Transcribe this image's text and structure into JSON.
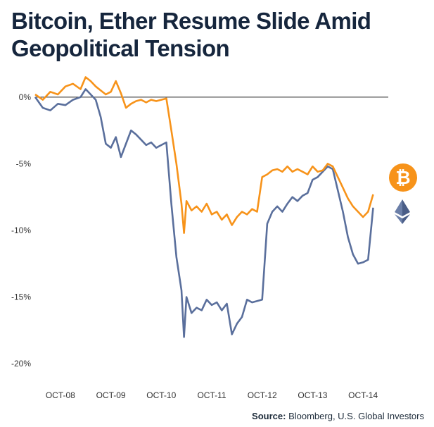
{
  "title": "Bitcoin, Ether Resume Slide Amid Geopolitical Tension",
  "source": {
    "label": "Source:",
    "text": "Bloomberg, U.S. Global Investors"
  },
  "colors": {
    "bitcoin": "#f7931a",
    "ether": "#5a6f9c",
    "axis": "#222222"
  },
  "icons": [
    "bitcoin-logo-icon",
    "ethereum-logo-icon"
  ],
  "chart_data": {
    "type": "line",
    "title": "Bitcoin, Ether Resume Slide Amid Geopolitical Tension",
    "xlabel": "",
    "ylabel": "",
    "x_ticks": [
      "OCT-08",
      "OCT-09",
      "OCT-10",
      "OCT-11",
      "OCT-12",
      "OCT-13",
      "OCT-14"
    ],
    "y_ticks": [
      0,
      -5,
      -10,
      -15,
      -20
    ],
    "y_tick_labels": [
      "0%",
      "-5%",
      "-10%",
      "-15%",
      "-20%"
    ],
    "xlim": [
      0,
      7
    ],
    "ylim": [
      -21,
      2
    ],
    "grid": false,
    "legend": "icons-right",
    "series": [
      {
        "key": "bitcoin",
        "x": [
          0,
          0.15,
          0.3,
          0.45,
          0.6,
          0.75,
          0.9,
          1.0,
          1.1,
          1.2,
          1.3,
          1.4,
          1.5,
          1.6,
          1.7,
          1.8,
          1.9,
          2.0,
          2.1,
          2.2,
          2.3,
          2.4,
          2.5,
          2.6,
          2.7,
          2.8,
          2.9,
          2.95,
          3.0,
          3.1,
          3.2,
          3.3,
          3.4,
          3.5,
          3.6,
          3.7,
          3.8,
          3.9,
          4.0,
          4.1,
          4.2,
          4.3,
          4.4,
          4.5,
          4.6,
          4.7,
          4.8,
          4.9,
          5.0,
          5.1,
          5.2,
          5.3,
          5.4,
          5.5,
          5.6,
          5.7,
          5.8,
          5.9,
          6.0,
          6.1,
          6.2,
          6.3,
          6.4,
          6.5,
          6.6,
          6.7
        ],
        "y": [
          0.2,
          -0.2,
          0.4,
          0.2,
          0.8,
          1.0,
          0.6,
          1.5,
          1.2,
          0.8,
          0.5,
          0.2,
          0.4,
          1.2,
          0.3,
          -0.8,
          -0.5,
          -0.3,
          -0.2,
          -0.4,
          -0.2,
          -0.3,
          -0.2,
          -0.1,
          -2.5,
          -5.0,
          -8.0,
          -10.2,
          -7.8,
          -8.5,
          -8.2,
          -8.6,
          -8.0,
          -8.8,
          -8.6,
          -9.2,
          -8.8,
          -9.6,
          -9.0,
          -8.6,
          -8.8,
          -8.4,
          -8.6,
          -6.0,
          -5.8,
          -5.5,
          -5.4,
          -5.6,
          -5.2,
          -5.6,
          -5.4,
          -5.6,
          -5.8,
          -5.2,
          -5.6,
          -5.5,
          -5.0,
          -5.2,
          -6.0,
          -6.8,
          -7.6,
          -8.2,
          -8.6,
          -9.0,
          -8.6,
          -7.3
        ]
      },
      {
        "key": "ether",
        "x": [
          0,
          0.15,
          0.3,
          0.45,
          0.6,
          0.75,
          0.9,
          1.0,
          1.1,
          1.2,
          1.3,
          1.4,
          1.5,
          1.6,
          1.7,
          1.8,
          1.9,
          2.0,
          2.1,
          2.2,
          2.3,
          2.4,
          2.5,
          2.6,
          2.7,
          2.8,
          2.9,
          2.95,
          3.0,
          3.1,
          3.2,
          3.3,
          3.4,
          3.5,
          3.6,
          3.7,
          3.8,
          3.9,
          4.0,
          4.1,
          4.2,
          4.3,
          4.4,
          4.5,
          4.6,
          4.7,
          4.8,
          4.9,
          5.0,
          5.1,
          5.2,
          5.3,
          5.4,
          5.5,
          5.6,
          5.7,
          5.8,
          5.9,
          6.0,
          6.1,
          6.2,
          6.3,
          6.4,
          6.5,
          6.6,
          6.7
        ],
        "y": [
          0.0,
          -0.8,
          -1.0,
          -0.5,
          -0.6,
          -0.2,
          0.0,
          0.6,
          0.2,
          -0.2,
          -1.5,
          -3.5,
          -3.8,
          -3.0,
          -4.5,
          -3.5,
          -2.5,
          -2.8,
          -3.2,
          -3.6,
          -3.4,
          -3.8,
          -3.6,
          -3.4,
          -8.0,
          -12.0,
          -14.5,
          -18.0,
          -15.0,
          -16.2,
          -15.8,
          -16.0,
          -15.2,
          -15.6,
          -15.4,
          -16.0,
          -15.5,
          -17.8,
          -17.0,
          -16.5,
          -15.2,
          -15.4,
          -15.3,
          -15.2,
          -9.5,
          -8.6,
          -8.2,
          -8.6,
          -8.0,
          -7.5,
          -7.8,
          -7.4,
          -7.2,
          -6.2,
          -6.0,
          -5.6,
          -5.2,
          -5.4,
          -7.0,
          -8.6,
          -10.5,
          -11.8,
          -12.5,
          -12.4,
          -12.2,
          -8.3
        ]
      }
    ]
  }
}
